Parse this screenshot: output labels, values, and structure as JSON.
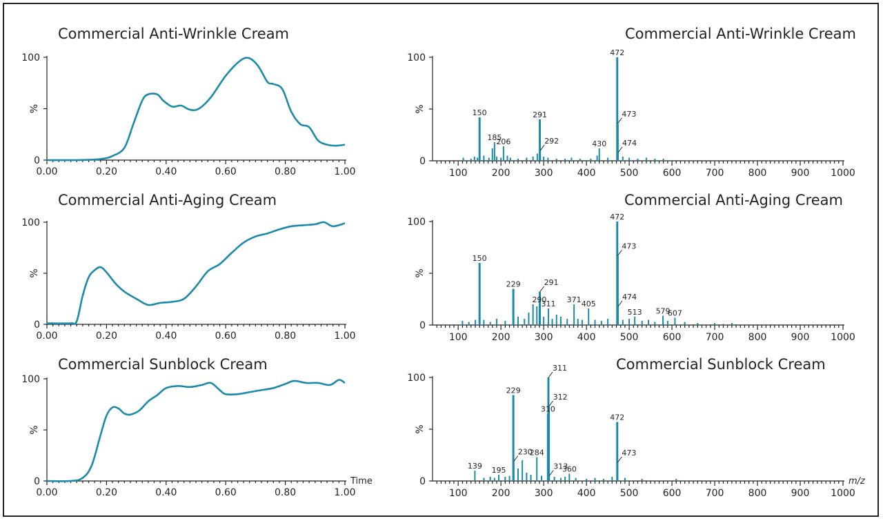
{
  "colors": {
    "trace": "#1a8aa8",
    "axis": "#222222"
  },
  "chart_data": [
    {
      "type": "line",
      "title": "Commercial Anti-Wrinkle Cream",
      "xlim": [
        0,
        1
      ],
      "ylim": [
        0,
        100
      ],
      "xticks": [
        "0.00",
        "0.20",
        "0.40",
        "0.60",
        "0.80",
        "1.00"
      ],
      "yticks": [
        "0",
        "%",
        "100"
      ],
      "xlabel": "",
      "x": [
        0.0,
        0.1,
        0.18,
        0.22,
        0.26,
        0.29,
        0.32,
        0.34,
        0.37,
        0.39,
        0.42,
        0.45,
        0.48,
        0.51,
        0.55,
        0.6,
        0.65,
        0.68,
        0.71,
        0.74,
        0.76,
        0.79,
        0.82,
        0.85,
        0.88,
        0.91,
        0.94,
        0.97,
        1.0
      ],
      "y": [
        0,
        0,
        1,
        4,
        12,
        35,
        58,
        64,
        64,
        58,
        52,
        53,
        49,
        50,
        61,
        82,
        97,
        99,
        91,
        76,
        74,
        69,
        47,
        35,
        32,
        19,
        15,
        14,
        15
      ]
    },
    {
      "type": "line",
      "title": "Commercial Anti-Aging Cream",
      "xlim": [
        0,
        1
      ],
      "ylim": [
        0,
        100
      ],
      "xticks": [
        "0.00",
        "0.20",
        "0.40",
        "0.60",
        "0.80",
        "1.00"
      ],
      "yticks": [
        "0",
        "%",
        "100"
      ],
      "xlabel": "",
      "x": [
        0.0,
        0.08,
        0.1,
        0.12,
        0.14,
        0.16,
        0.18,
        0.2,
        0.23,
        0.26,
        0.3,
        0.34,
        0.38,
        0.42,
        0.46,
        0.5,
        0.54,
        0.58,
        0.62,
        0.66,
        0.7,
        0.74,
        0.78,
        0.82,
        0.86,
        0.9,
        0.93,
        0.96,
        1.0
      ],
      "y": [
        1,
        1,
        3,
        28,
        46,
        53,
        56,
        51,
        40,
        32,
        25,
        19,
        21,
        22,
        25,
        37,
        52,
        59,
        70,
        80,
        86,
        89,
        93,
        96,
        97,
        98,
        100,
        96,
        99
      ]
    },
    {
      "type": "line",
      "title": "Commercial Sunblock Cream",
      "xlim": [
        0,
        1
      ],
      "ylim": [
        0,
        100
      ],
      "xticks": [
        "0.00",
        "0.20",
        "0.40",
        "0.60",
        "0.80",
        "1.00"
      ],
      "yticks": [
        "0",
        "%",
        "100"
      ],
      "xlabel": "Time",
      "x": [
        0.0,
        0.08,
        0.12,
        0.15,
        0.18,
        0.2,
        0.22,
        0.24,
        0.26,
        0.28,
        0.31,
        0.34,
        0.37,
        0.4,
        0.44,
        0.48,
        0.52,
        0.55,
        0.58,
        0.6,
        0.64,
        0.68,
        0.72,
        0.76,
        0.8,
        0.83,
        0.87,
        0.91,
        0.95,
        0.98,
        1.0
      ],
      "y": [
        0,
        0,
        3,
        15,
        45,
        64,
        72,
        71,
        66,
        65,
        69,
        78,
        84,
        91,
        93,
        92,
        94,
        96,
        89,
        85,
        85,
        87,
        89,
        91,
        95,
        98,
        96,
        96,
        94,
        99,
        96
      ]
    },
    {
      "type": "bar",
      "title": "Commercial Anti-Wrinkle Cream",
      "xlim": [
        40,
        1000
      ],
      "ylim": [
        0,
        100
      ],
      "xticks": [
        "100",
        "200",
        "300",
        "400",
        "500",
        "600",
        "700",
        "800",
        "900",
        "1000"
      ],
      "yticks": [
        "0",
        "%",
        "100"
      ],
      "xlabel": "",
      "x": [
        112,
        130,
        138,
        145,
        150,
        160,
        172,
        180,
        185,
        190,
        200,
        206,
        215,
        222,
        240,
        260,
        275,
        285,
        291,
        292,
        300,
        310,
        330,
        350,
        365,
        385,
        410,
        425,
        430,
        450,
        472,
        473,
        474,
        485,
        500,
        520,
        540,
        560,
        580
      ],
      "y": [
        3,
        2,
        4,
        3,
        42,
        5,
        3,
        12,
        18,
        4,
        3,
        14,
        5,
        3,
        2,
        3,
        4,
        7,
        40,
        10,
        4,
        3,
        2,
        2,
        3,
        2,
        2,
        5,
        12,
        3,
        100,
        36,
        8,
        4,
        3,
        2,
        3,
        2,
        2
      ],
      "peak_labels": [
        {
          "x": 150,
          "y": 42,
          "label": "150"
        },
        {
          "x": 185,
          "y": 18,
          "label": "185"
        },
        {
          "x": 206,
          "y": 14,
          "label": "206"
        },
        {
          "x": 291,
          "y": 40,
          "label": "291"
        },
        {
          "x": 292,
          "y": 10,
          "label": "292"
        },
        {
          "x": 430,
          "y": 12,
          "label": "430"
        },
        {
          "x": 472,
          "y": 100,
          "label": "472"
        },
        {
          "x": 473,
          "y": 36,
          "label": "473"
        },
        {
          "x": 474,
          "y": 8,
          "label": "474"
        }
      ]
    },
    {
      "type": "bar",
      "title": "Commercial Anti-Aging Cream",
      "xlim": [
        40,
        1000
      ],
      "ylim": [
        0,
        100
      ],
      "xticks": [
        "100",
        "200",
        "300",
        "400",
        "500",
        "600",
        "700",
        "800",
        "900",
        "1000"
      ],
      "yticks": [
        "0",
        "%",
        "100"
      ],
      "xlabel": "",
      "x": [
        110,
        125,
        140,
        150,
        160,
        175,
        190,
        210,
        229,
        240,
        255,
        265,
        275,
        284,
        290,
        291,
        300,
        311,
        320,
        330,
        340,
        355,
        371,
        380,
        390,
        405,
        420,
        435,
        450,
        472,
        473,
        474,
        485,
        500,
        513,
        530,
        545,
        560,
        579,
        590,
        607,
        630,
        660,
        700,
        720,
        740
      ],
      "y": [
        4,
        3,
        5,
        60,
        5,
        3,
        6,
        4,
        35,
        8,
        6,
        12,
        20,
        18,
        20,
        32,
        8,
        16,
        6,
        10,
        8,
        6,
        20,
        6,
        5,
        16,
        5,
        4,
        6,
        100,
        67,
        18,
        5,
        6,
        8,
        4,
        5,
        3,
        9,
        4,
        7,
        3,
        2,
        2,
        1,
        2
      ],
      "peak_labels": [
        {
          "x": 150,
          "y": 60,
          "label": "150"
        },
        {
          "x": 229,
          "y": 35,
          "label": "229"
        },
        {
          "x": 290,
          "y": 20,
          "label": "290"
        },
        {
          "x": 291,
          "y": 32,
          "label": "291"
        },
        {
          "x": 311,
          "y": 16,
          "label": "311"
        },
        {
          "x": 371,
          "y": 20,
          "label": "371"
        },
        {
          "x": 405,
          "y": 16,
          "label": "405"
        },
        {
          "x": 472,
          "y": 100,
          "label": "472"
        },
        {
          "x": 473,
          "y": 67,
          "label": "473"
        },
        {
          "x": 474,
          "y": 18,
          "label": "474"
        },
        {
          "x": 513,
          "y": 8,
          "label": "513"
        },
        {
          "x": 579,
          "y": 9,
          "label": "579"
        },
        {
          "x": 607,
          "y": 7,
          "label": "607"
        }
      ]
    },
    {
      "type": "bar",
      "title": "Commercial Sunblock Cream",
      "xlim": [
        40,
        1000
      ],
      "ylim": [
        0,
        100
      ],
      "xticks": [
        "100",
        "200",
        "300",
        "400",
        "500",
        "600",
        "700",
        "800",
        "900",
        "1000"
      ],
      "yticks": [
        "0",
        "%",
        "100"
      ],
      "xlabel": "m/z",
      "x": [
        139,
        160,
        175,
        185,
        195,
        210,
        220,
        229,
        230,
        240,
        250,
        260,
        270,
        284,
        295,
        310,
        311,
        312,
        313,
        325,
        340,
        350,
        360,
        375,
        400,
        420,
        440,
        460,
        472,
        473,
        490,
        530,
        610
      ],
      "y": [
        10,
        3,
        4,
        3,
        6,
        4,
        5,
        83,
        19,
        12,
        20,
        8,
        6,
        23,
        5,
        65,
        100,
        72,
        5,
        4,
        3,
        4,
        7,
        3,
        2,
        3,
        2,
        4,
        57,
        18,
        3,
        2,
        2
      ],
      "peak_labels": [
        {
          "x": 139,
          "y": 10,
          "label": "139"
        },
        {
          "x": 195,
          "y": 6,
          "label": "195"
        },
        {
          "x": 229,
          "y": 83,
          "label": "229"
        },
        {
          "x": 230,
          "y": 19,
          "label": "230"
        },
        {
          "x": 284,
          "y": 23,
          "label": "284"
        },
        {
          "x": 310,
          "y": 65,
          "label": "310"
        },
        {
          "x": 311,
          "y": 100,
          "label": "311"
        },
        {
          "x": 312,
          "y": 72,
          "label": "312"
        },
        {
          "x": 313,
          "y": 5,
          "label": "313"
        },
        {
          "x": 360,
          "y": 7,
          "label": "360"
        },
        {
          "x": 472,
          "y": 57,
          "label": "472"
        },
        {
          "x": 473,
          "y": 18,
          "label": "473"
        }
      ]
    }
  ]
}
